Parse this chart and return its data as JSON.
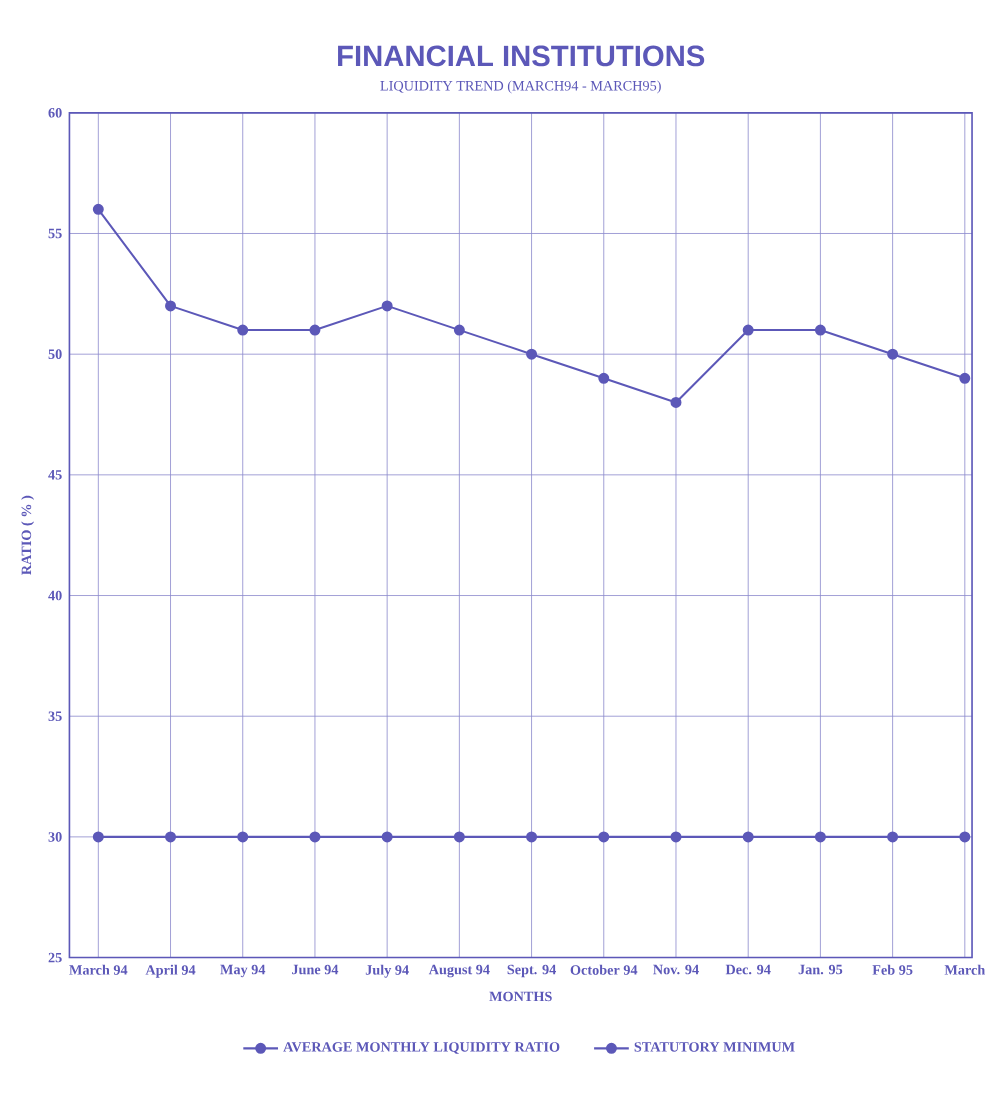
{
  "chart_data": {
    "type": "line",
    "title": "FINANCIAL INSTITUTIONS",
    "subtitle": "LIQUIDITY TREND (MARCH94 - MARCH95)",
    "xlabel": "MONTHS",
    "ylabel": "RATIO ( % )",
    "categories": [
      "March 94",
      "April 94",
      "May 94",
      "June 94",
      "July 94",
      "August 94",
      "Sept. 94",
      "October 94",
      "Nov. 94",
      "Dec. 94",
      "Jan. 95",
      "Feb 95",
      "March"
    ],
    "series": [
      {
        "name": "AVERAGE MONTHLY LIQUIDITY RATIO",
        "color": "#5c58b8",
        "values": [
          56,
          52,
          51,
          51,
          52,
          51,
          50,
          49,
          48,
          51,
          51,
          50,
          49
        ]
      },
      {
        "name": "STATUTORY MINIMUM",
        "color": "#5c58b8",
        "values": [
          30,
          30,
          30,
          30,
          30,
          30,
          30,
          30,
          30,
          30,
          30,
          30,
          30
        ]
      }
    ],
    "ylim": [
      25,
      60
    ],
    "yticks": [
      25,
      30,
      35,
      40,
      45,
      50,
      55,
      60
    ],
    "grid": true,
    "legend": "bottom",
    "marker": "circle",
    "line_style": "solid"
  }
}
